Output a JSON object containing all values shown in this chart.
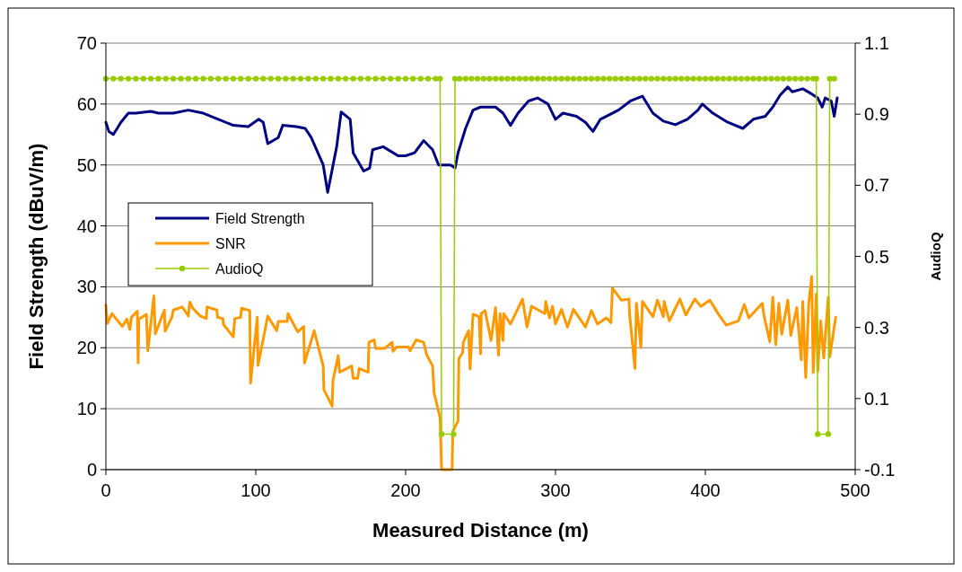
{
  "chart_data": {
    "type": "line",
    "xlabel": "Measured Distance (m)",
    "ylabel": "Field Strength (dBuV/m)",
    "y2label": "AudioQ",
    "xlim": [
      0,
      500
    ],
    "xticks": [
      0,
      100,
      200,
      300,
      400,
      500
    ],
    "ylim": [
      0,
      70
    ],
    "yticks": [
      0,
      10,
      20,
      30,
      40,
      50,
      60,
      70
    ],
    "y2lim": [
      -0.1,
      1.1
    ],
    "y2ticks": [
      -0.1,
      0.1,
      0.3,
      0.5,
      0.7,
      0.9,
      1.1
    ],
    "grid": "y",
    "legend": "left",
    "series": [
      {
        "name": "Field Strength",
        "color": "#000080",
        "marker": "none",
        "x": [
          0,
          2,
          5,
          10,
          15,
          20,
          30,
          35,
          45,
          55,
          65,
          75,
          85,
          95,
          102,
          105,
          108,
          115,
          118,
          127,
          133,
          137,
          145,
          148,
          154,
          157,
          163,
          165,
          172,
          176,
          178,
          185,
          195,
          200,
          206,
          212,
          218,
          222,
          230,
          233,
          235,
          240,
          245,
          250,
          260,
          265,
          270,
          275,
          282,
          288,
          295,
          300,
          305,
          314,
          320,
          325,
          330,
          342,
          350,
          358,
          365,
          372,
          380,
          388,
          395,
          398,
          405,
          415,
          425,
          432,
          440,
          445,
          450,
          455,
          458,
          465,
          470,
          475,
          478,
          480,
          484,
          486,
          488
        ],
        "values": [
          57,
          55.5,
          55,
          57,
          58.5,
          58.5,
          58.8,
          58.5,
          58.5,
          59,
          58.5,
          57.5,
          56.5,
          56.3,
          57.5,
          57,
          53.5,
          54.5,
          56.5,
          56.3,
          56,
          54.5,
          50,
          45.5,
          53,
          58.7,
          57.5,
          52,
          49,
          49.5,
          52.5,
          53,
          51.5,
          51.5,
          52,
          54,
          52.5,
          50,
          50,
          49.5,
          52,
          56,
          59,
          59.5,
          59.5,
          58.5,
          56.5,
          58.5,
          60.5,
          61,
          60,
          57.5,
          58.5,
          58,
          57,
          55.5,
          57.5,
          59,
          60.5,
          61.3,
          58.5,
          57.2,
          56.6,
          57.5,
          59,
          60,
          58.5,
          57,
          56,
          57.5,
          58,
          59.5,
          61.5,
          62.8,
          62,
          62.5,
          61.8,
          61,
          59.5,
          61,
          60.5,
          58,
          61
        ]
      },
      {
        "name": "SNR",
        "color": "#ff9900",
        "marker": "none",
        "x": [
          0,
          1,
          4,
          11,
          14,
          16,
          17,
          21,
          21.5,
          22,
          27,
          28,
          32,
          33,
          39,
          39.5,
          44,
          45,
          51,
          55,
          56,
          58,
          63,
          67,
          67.5,
          74,
          74.5,
          78,
          78.5,
          85,
          86,
          90,
          90.5,
          96,
          96.5,
          101,
          101.5,
          108,
          114,
          115,
          121,
          121.5,
          128,
          132,
          132.5,
          139,
          145,
          145.5,
          151,
          151.5,
          155,
          156,
          164,
          165,
          168,
          169,
          175,
          175.5,
          179,
          180,
          186,
          191,
          191.5,
          194,
          202,
          203,
          207,
          212,
          214,
          218,
          219,
          223,
          224,
          231,
          231.5,
          235,
          235.5,
          238,
          238.5,
          242,
          243,
          245,
          249,
          250,
          250.5,
          253,
          254,
          257,
          260,
          262,
          263,
          265,
          265.5,
          270,
          278,
          281,
          284,
          293,
          293.5,
          296,
          298,
          300,
          304,
          308,
          312,
          320,
          324,
          328,
          334,
          337,
          338,
          344,
          349,
          349.5,
          353,
          354,
          357,
          358,
          365,
          368,
          372,
          372.5,
          376,
          383,
          387,
          393,
          397,
          403,
          409,
          414,
          422,
          426,
          429,
          438,
          439,
          443,
          445,
          447,
          449,
          451,
          455,
          457,
          461,
          464,
          465,
          467,
          469,
          471,
          472,
          474,
          475,
          477,
          479,
          482,
          483,
          487
        ],
        "values": [
          27,
          24,
          25.6,
          23.5,
          24.7,
          23,
          25,
          26,
          17.5,
          24.7,
          25.5,
          19.5,
          28.5,
          22.3,
          26.2,
          22.7,
          25,
          26.2,
          26.7,
          25.2,
          27.5,
          26.5,
          25.2,
          24.8,
          26.7,
          26.2,
          25,
          24.8,
          23.8,
          21.8,
          24.8,
          25,
          26.5,
          26.1,
          14.2,
          25,
          17.1,
          25.2,
          22.8,
          24.3,
          24.3,
          25.6,
          22.6,
          23.5,
          17.5,
          22.8,
          17,
          13.1,
          10.4,
          14.6,
          18.7,
          16,
          17,
          15,
          15,
          16.6,
          16,
          20.9,
          21.3,
          19.9,
          19.9,
          20.9,
          19.4,
          20.1,
          20.1,
          19.5,
          21.3,
          20.9,
          18.9,
          17,
          12.6,
          8.5,
          0,
          0,
          6.3,
          8,
          18.2,
          19.2,
          20.9,
          22.8,
          16.5,
          25.5,
          25.1,
          19,
          25.6,
          26.1,
          24.9,
          21.2,
          26.6,
          18.8,
          25.6,
          21.2,
          25.6,
          23.9,
          28,
          23.4,
          26.8,
          25.6,
          27.6,
          24.9,
          26.8,
          23.9,
          26.3,
          23.4,
          26.3,
          23.4,
          26.1,
          23.9,
          24.9,
          24.1,
          29.8,
          27.8,
          28,
          25.4,
          16.6,
          27.3,
          20,
          27.6,
          25.1,
          27.8,
          25.1,
          27.6,
          24.4,
          28,
          25.4,
          28,
          26.8,
          27.8,
          25.4,
          23.7,
          24.4,
          27.1,
          24.9,
          27.3,
          25.4,
          21,
          28.3,
          20.5,
          27.3,
          22.2,
          27.8,
          22,
          26.6,
          18,
          27.6,
          15.1,
          27.3,
          31.7,
          15.9,
          28.8,
          16.1,
          24.4,
          18.3,
          28.3,
          18.5,
          25
        ]
      },
      {
        "name": "AudioQ",
        "color": "#99cc00",
        "marker": "circle",
        "axis": "y2",
        "x": [
          0,
          5,
          10,
          15,
          20,
          25,
          30,
          35,
          40,
          45,
          50,
          55,
          60,
          65,
          70,
          75,
          80,
          85,
          90,
          95,
          100,
          105,
          110,
          115,
          120,
          125,
          130,
          135,
          140,
          145,
          150,
          155,
          160,
          165,
          170,
          175,
          180,
          185,
          190,
          195,
          200,
          205,
          210,
          215,
          220,
          223,
          224,
          232,
          233,
          236,
          240,
          244,
          248,
          252,
          256,
          260,
          264,
          268,
          272,
          276,
          280,
          284,
          288,
          292,
          296,
          300,
          304,
          308,
          312,
          316,
          320,
          324,
          328,
          332,
          336,
          340,
          344,
          348,
          352,
          356,
          360,
          364,
          368,
          372,
          376,
          380,
          384,
          388,
          392,
          396,
          400,
          404,
          408,
          412,
          416,
          420,
          424,
          428,
          432,
          436,
          440,
          444,
          448,
          452,
          456,
          460,
          464,
          468,
          472,
          474,
          475,
          482,
          483,
          486
        ],
        "values": [
          1,
          1,
          1,
          1,
          1,
          1,
          1,
          1,
          1,
          1,
          1,
          1,
          1,
          1,
          1,
          1,
          1,
          1,
          1,
          1,
          1,
          1,
          1,
          1,
          1,
          1,
          1,
          1,
          1,
          1,
          1,
          1,
          1,
          1,
          1,
          1,
          1,
          1,
          1,
          1,
          1,
          1,
          1,
          1,
          1,
          1,
          0,
          0,
          1,
          1,
          1,
          1,
          1,
          1,
          1,
          1,
          1,
          1,
          1,
          1,
          1,
          1,
          1,
          1,
          1,
          1,
          1,
          1,
          1,
          1,
          1,
          1,
          1,
          1,
          1,
          1,
          1,
          1,
          1,
          1,
          1,
          1,
          1,
          1,
          1,
          1,
          1,
          1,
          1,
          1,
          1,
          1,
          1,
          1,
          1,
          1,
          1,
          1,
          1,
          1,
          1,
          1,
          1,
          1,
          1,
          1,
          1,
          1,
          1,
          1,
          0,
          0,
          1,
          1
        ]
      }
    ]
  }
}
